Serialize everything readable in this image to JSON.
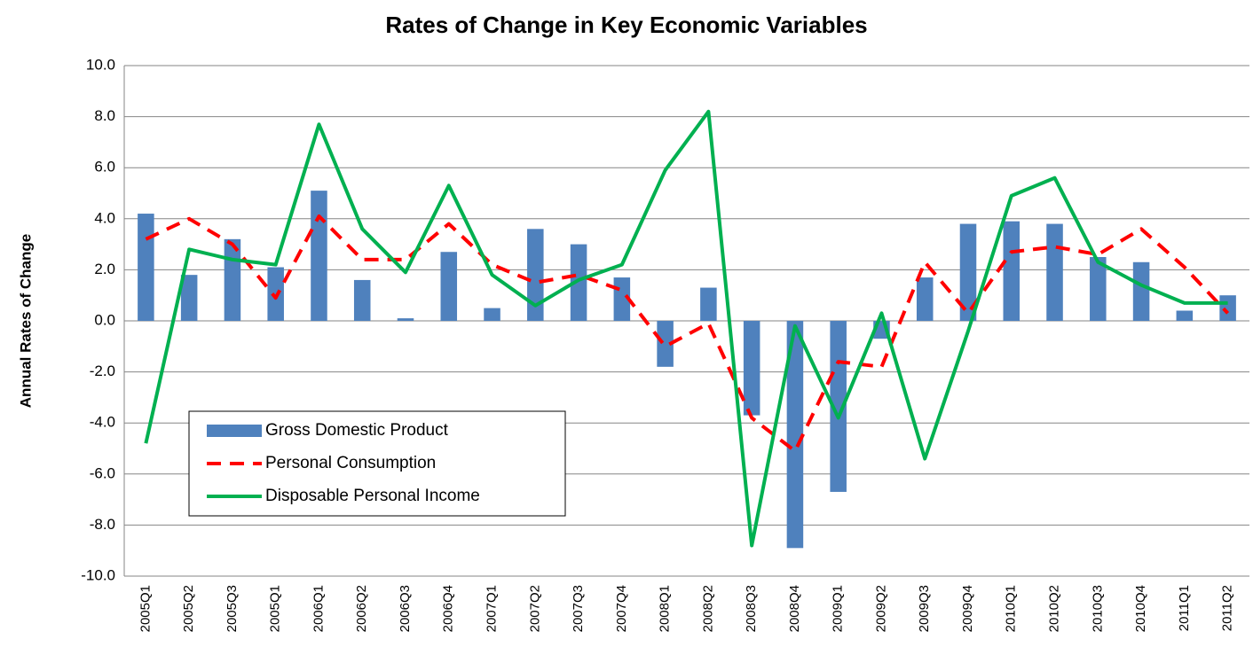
{
  "chart_data": {
    "type": "bar-line",
    "title": "Rates of Change in Key Economic Variables",
    "y_label": "Annual Rates of Change",
    "categories": [
      "2005Q1",
      "2005Q2",
      "2005Q3",
      "2005Q1",
      "2006Q1",
      "2006Q2",
      "2006Q3",
      "2006Q4",
      "2007Q1",
      "2007Q2",
      "2007Q3",
      "2007Q4",
      "2008Q1",
      "2008Q2",
      "2008Q3",
      "2008Q4",
      "2009Q1",
      "2009Q2",
      "2009Q3",
      "2009Q4",
      "2010Q1",
      "2010Q2",
      "2010Q3",
      "2010Q4",
      "2011Q1",
      "2011Q2"
    ],
    "series": [
      {
        "name": "Gross Domestic Product",
        "type": "bar",
        "color": "#4f81bd",
        "values": [
          4.2,
          1.8,
          3.2,
          2.1,
          5.1,
          1.6,
          0.1,
          2.7,
          0.5,
          3.6,
          3.0,
          1.7,
          -1.8,
          1.3,
          -3.7,
          -8.9,
          -6.7,
          -0.7,
          1.7,
          3.8,
          3.9,
          3.8,
          2.5,
          2.3,
          0.4,
          1.0
        ]
      },
      {
        "name": "Personal Consumption",
        "type": "line",
        "dash": true,
        "color": "#ff0000",
        "values": [
          3.2,
          4.0,
          3.0,
          0.9,
          4.1,
          2.4,
          2.4,
          3.8,
          2.2,
          1.5,
          1.8,
          1.2,
          -1.0,
          -0.1,
          -3.8,
          -5.1,
          -1.6,
          -1.8,
          2.3,
          0.3,
          2.7,
          2.9,
          2.6,
          3.6,
          2.1,
          0.3
        ]
      },
      {
        "name": "Disposable Personal Income",
        "type": "line",
        "dash": false,
        "color": "#00b050",
        "values": [
          -4.8,
          2.8,
          2.4,
          2.2,
          7.7,
          3.6,
          1.9,
          5.3,
          1.8,
          0.6,
          1.6,
          2.2,
          5.9,
          8.2,
          -8.8,
          -0.2,
          -3.8,
          0.3,
          -5.4,
          -0.4,
          4.9,
          5.6,
          2.3,
          1.4,
          0.7,
          0.7
        ]
      }
    ],
    "ylim": [
      -10,
      10
    ],
    "yticks": [
      {
        "value": -10,
        "label": "-10.0"
      },
      {
        "value": -8,
        "label": "-8.0"
      },
      {
        "value": -6,
        "label": "-6.0"
      },
      {
        "value": -4,
        "label": "-4.0"
      },
      {
        "value": -2,
        "label": "-2.0"
      },
      {
        "value": 0,
        "label": "0.0"
      },
      {
        "value": 2,
        "label": "2.0"
      },
      {
        "value": 4,
        "label": "4.0"
      },
      {
        "value": 6,
        "label": "6.0"
      },
      {
        "value": 8,
        "label": "8.0"
      },
      {
        "value": 10,
        "label": "10.0"
      }
    ],
    "grid": true,
    "legend": "lower left"
  }
}
